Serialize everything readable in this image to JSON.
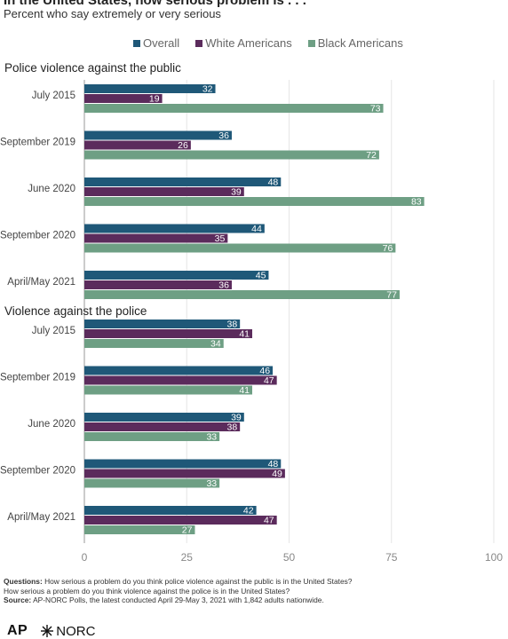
{
  "title": "In the United States, how serious problem is . . .",
  "subtitle": "Percent who say extremely or very serious",
  "colors": {
    "Overall": "#1f5878",
    "White Americans": "#5b2b5c",
    "Black Americans": "#6e9f84",
    "grid": "#e6e6e6",
    "axis": "#999999"
  },
  "notes": {
    "questions_label": "Questions:",
    "questions_text": "How serious a problem do you think police violence against the public is in the United States?",
    "questions_text2": "How serious a problem do you think violence against the police is in the United States?",
    "source_label": "Source:",
    "source_text": "AP-NORC Polls, the latest conducted April 29-May 3, 2021 with 1,842 adults nationwide."
  },
  "logos": {
    "ap": "AP",
    "norc": "NORC"
  },
  "chart_data": {
    "type": "bar",
    "orientation": "horizontal",
    "xlim": [
      0,
      100
    ],
    "xticks": [
      0,
      25,
      50,
      75,
      100
    ],
    "grid": true,
    "legend": [
      "Overall",
      "White Americans",
      "Black Americans"
    ],
    "legend_position": "top",
    "panels": [
      {
        "title": "Police violence against the public",
        "categories": [
          "July 2015",
          "September 2019",
          "June 2020",
          "September 2020",
          "April/May 2021"
        ],
        "series": [
          {
            "name": "Overall",
            "values": [
              32,
              36,
              48,
              44,
              45
            ]
          },
          {
            "name": "White Americans",
            "values": [
              19,
              26,
              39,
              35,
              36
            ]
          },
          {
            "name": "Black Americans",
            "values": [
              73,
              72,
              83,
              76,
              77
            ]
          }
        ]
      },
      {
        "title": "Violence against the police",
        "categories": [
          "July 2015",
          "September 2019",
          "June 2020",
          "September 2020",
          "April/May 2021"
        ],
        "series": [
          {
            "name": "Overall",
            "values": [
              38,
              46,
              39,
              48,
              42
            ]
          },
          {
            "name": "White Americans",
            "values": [
              41,
              47,
              38,
              49,
              47
            ]
          },
          {
            "name": "Black Americans",
            "values": [
              34,
              41,
              33,
              33,
              27
            ]
          }
        ]
      }
    ]
  }
}
